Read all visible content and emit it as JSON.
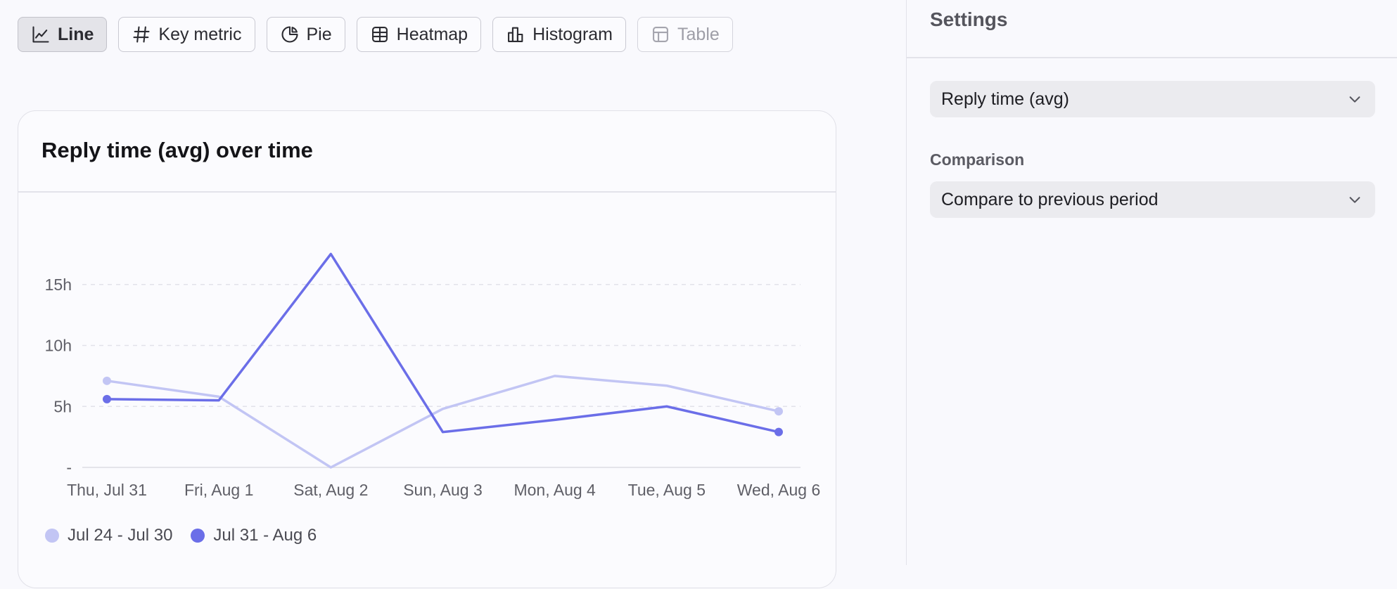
{
  "toolbar": {
    "buttons": [
      {
        "label": "Line",
        "icon": "line-chart-icon",
        "state": "active"
      },
      {
        "label": "Key metric",
        "icon": "hash-icon",
        "state": "normal"
      },
      {
        "label": "Pie",
        "icon": "pie-chart-icon",
        "state": "normal"
      },
      {
        "label": "Heatmap",
        "icon": "grid-icon",
        "state": "normal"
      },
      {
        "label": "Histogram",
        "icon": "bar-chart-icon",
        "state": "normal"
      },
      {
        "label": "Table",
        "icon": "table-icon",
        "state": "disabled"
      }
    ]
  },
  "card": {
    "title": "Reply time (avg) over time"
  },
  "chart_data": {
    "type": "line",
    "categories": [
      "Thu, Jul 31",
      "Fri, Aug 1",
      "Sat, Aug 2",
      "Sun, Aug 3",
      "Mon, Aug 4",
      "Tue, Aug 5",
      "Wed, Aug 6"
    ],
    "yticks": [
      {
        "value": 0,
        "label": "-"
      },
      {
        "value": 5,
        "label": "5h"
      },
      {
        "value": 10,
        "label": "10h"
      },
      {
        "value": 15,
        "label": "15h"
      }
    ],
    "ylim": [
      0,
      17.5
    ],
    "grid": true,
    "legend_position": "bottom-left",
    "series": [
      {
        "name": "Jul 24 - Jul 30",
        "color": "#c2c5f4",
        "values": [
          7.1,
          5.8,
          0,
          4.8,
          7.5,
          6.7,
          4.6
        ]
      },
      {
        "name": "Jul 31 - Aug 6",
        "color": "#6b6ee8",
        "values": [
          5.6,
          5.5,
          17.5,
          2.9,
          3.9,
          5.0,
          2.9
        ]
      }
    ]
  },
  "settings": {
    "title": "Settings",
    "metric_select": "Reply time (avg)",
    "comparison_label": "Comparison",
    "comparison_select": "Compare to previous period"
  },
  "colors": {
    "accent": "#6b6ee8",
    "previous": "#c2c5f4"
  }
}
